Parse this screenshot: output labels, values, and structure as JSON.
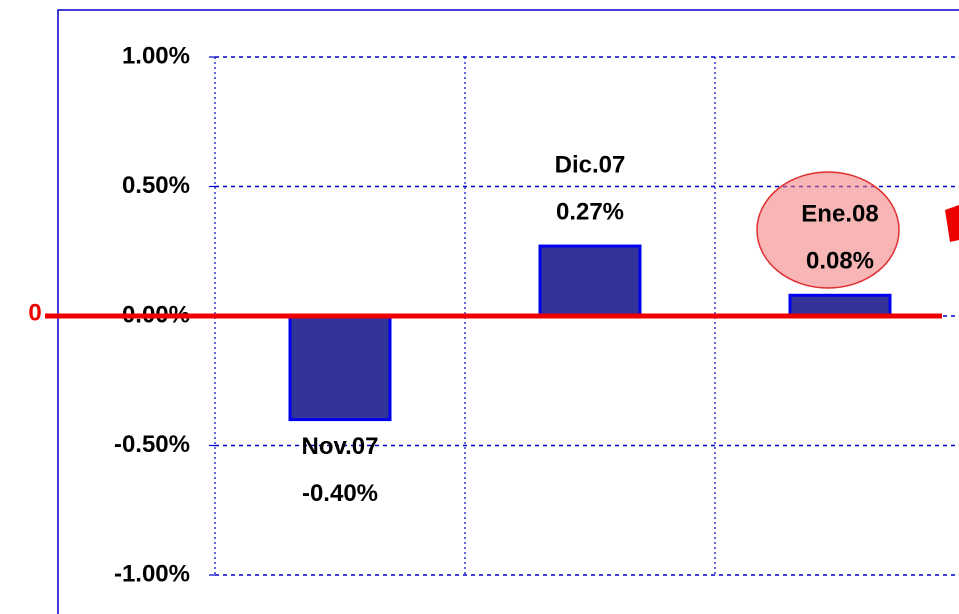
{
  "chart_data": {
    "type": "bar",
    "categories": [
      "Nov.07",
      "Dic.07",
      "Ene.08"
    ],
    "values": [
      -0.4,
      0.27,
      0.08
    ],
    "value_labels": [
      "-0.40%",
      "0.27%",
      "0.08%"
    ],
    "color": "#333399",
    "ylim": [
      -1.0,
      1.0
    ],
    "yticks": [
      {
        "value": -1.0,
        "label": "-1.00%"
      },
      {
        "value": -0.5,
        "label": "-0.50%"
      },
      {
        "value": 0,
        "label": "0.00%"
      },
      {
        "value": 0.5,
        "label": "0.50%"
      },
      {
        "value": 1.0,
        "label": "1.00%"
      }
    ],
    "grid": true,
    "annotation": "0"
  }
}
